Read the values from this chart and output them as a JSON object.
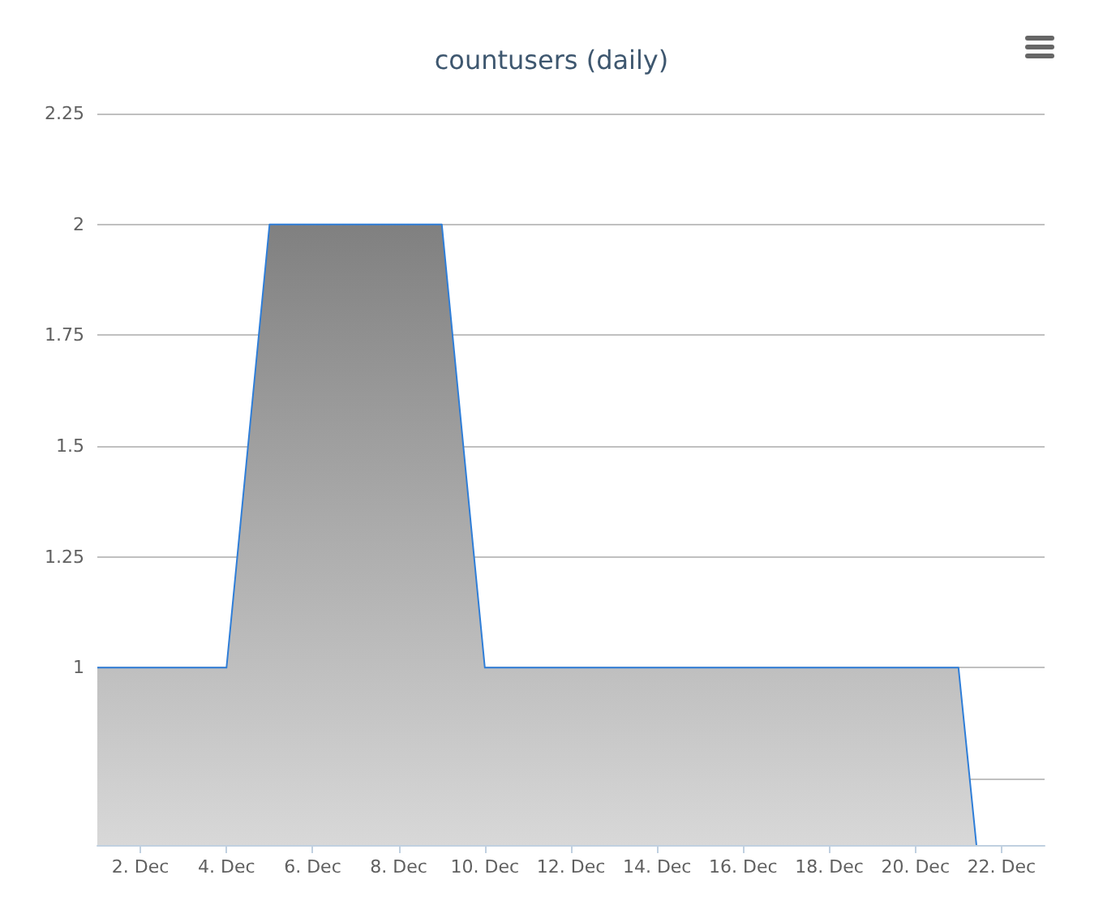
{
  "chart_data": {
    "type": "area",
    "title": "countusers (daily)",
    "x": [
      "--12-01",
      "--12-02",
      "--12-03",
      "--12-04",
      "--12-05",
      "--12-06",
      "--12-07",
      "--12-08",
      "--12-09",
      "--12-10",
      "--12-11",
      "--12-12",
      "--12-13",
      "--12-14",
      "--12-15",
      "--12-16",
      "--12-17",
      "--12-18",
      "--12-19",
      "--12-20",
      "--12-21",
      "--12-21T10:00"
    ],
    "series": [
      {
        "color": "#2f7ed8",
        "values": [
          1,
          1,
          1,
          1,
          2,
          2,
          2,
          2,
          2,
          1,
          1,
          1,
          1,
          1,
          1,
          1,
          1,
          1,
          1,
          1,
          1,
          0.6
        ]
      }
    ],
    "xlim": [
      "--12-01",
      "--12-23"
    ],
    "xticks": [
      {
        "value": "--12-02",
        "label": "2. Dec"
      },
      {
        "value": "--12-04",
        "label": "4. Dec"
      },
      {
        "value": "--12-06",
        "label": "6. Dec"
      },
      {
        "value": "--12-08",
        "label": "8. Dec"
      },
      {
        "value": "--12-10",
        "label": "10. Dec"
      },
      {
        "value": "--12-12",
        "label": "12. Dec"
      },
      {
        "value": "--12-14",
        "label": "14. Dec"
      },
      {
        "value": "--12-16",
        "label": "16. Dec"
      },
      {
        "value": "--12-18",
        "label": "18. Dec"
      },
      {
        "value": "--12-20",
        "label": "20. Dec"
      },
      {
        "value": "--12-22",
        "label": "22. Dec"
      }
    ],
    "ylim": [
      0.6,
      2.25
    ],
    "yticks": [
      {
        "value": 0.75,
        "label": null
      },
      1,
      1.25,
      1.5,
      1.75,
      2,
      2.25
    ],
    "grid": "y",
    "marker": "none"
  }
}
